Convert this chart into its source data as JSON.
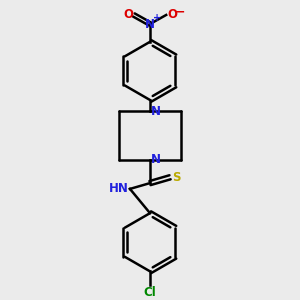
{
  "bg_color": "#ebebeb",
  "atom_colors": {
    "C": "#000000",
    "N": "#2020dd",
    "O": "#dd0000",
    "S": "#bbaa00",
    "Cl": "#008800",
    "H": "#777777"
  }
}
